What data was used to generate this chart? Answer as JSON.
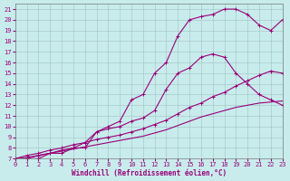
{
  "bg_color": "#c8ecec",
  "grid_color": "#a0c0c0",
  "line_color": "#990077",
  "xlim": [
    0,
    23
  ],
  "ylim": [
    7,
    21.5
  ],
  "xticks": [
    0,
    1,
    2,
    3,
    4,
    5,
    6,
    7,
    8,
    9,
    10,
    11,
    12,
    13,
    14,
    15,
    16,
    17,
    18,
    19,
    20,
    21,
    22,
    23
  ],
  "yticks": [
    7,
    8,
    9,
    10,
    11,
    12,
    13,
    14,
    15,
    16,
    17,
    18,
    19,
    20,
    21
  ],
  "curve_bell_x": [
    0,
    1,
    2,
    3,
    4,
    5,
    6,
    7,
    8,
    9,
    10,
    11,
    12,
    13,
    14,
    15,
    16,
    17,
    18,
    19,
    20,
    21,
    22,
    23
  ],
  "curve_bell_y": [
    7.0,
    7.0,
    7.0,
    7.5,
    7.5,
    8.0,
    8.0,
    9.5,
    10.0,
    10.5,
    12.5,
    13.0,
    15.0,
    16.0,
    18.5,
    20.0,
    20.3,
    20.5,
    21.0,
    21.0,
    20.5,
    19.5,
    19.0,
    20.0
  ],
  "curve_mid_x": [
    0,
    1,
    2,
    3,
    4,
    5,
    6,
    7,
    8,
    9,
    10,
    11,
    12,
    13,
    14,
    15,
    16,
    17,
    18,
    19,
    20,
    21,
    22,
    23
  ],
  "curve_mid_y": [
    7.0,
    7.0,
    7.3,
    7.5,
    7.8,
    8.0,
    8.5,
    9.5,
    9.8,
    10.0,
    10.5,
    10.8,
    11.5,
    13.5,
    15.0,
    15.5,
    16.5,
    16.8,
    16.5,
    15.0,
    14.0,
    13.0,
    12.5,
    12.0
  ],
  "curve_lo1_x": [
    0,
    1,
    2,
    3,
    4,
    5,
    6,
    7,
    8,
    9,
    10,
    11,
    12,
    13,
    14,
    15,
    16,
    17,
    18,
    19,
    20,
    21,
    22,
    23
  ],
  "curve_lo1_y": [
    7.0,
    7.3,
    7.5,
    7.8,
    8.0,
    8.3,
    8.5,
    8.8,
    9.0,
    9.2,
    9.5,
    9.8,
    10.2,
    10.6,
    11.2,
    11.8,
    12.2,
    12.8,
    13.2,
    13.8,
    14.3,
    14.8,
    15.2,
    15.0
  ],
  "curve_lo2_x": [
    0,
    1,
    2,
    3,
    4,
    5,
    6,
    7,
    8,
    9,
    10,
    11,
    12,
    13,
    14,
    15,
    16,
    17,
    18,
    19,
    20,
    21,
    22,
    23
  ],
  "curve_lo2_y": [
    7.0,
    7.1,
    7.3,
    7.5,
    7.7,
    7.9,
    8.1,
    8.3,
    8.5,
    8.7,
    8.9,
    9.1,
    9.4,
    9.7,
    10.1,
    10.5,
    10.9,
    11.2,
    11.5,
    11.8,
    12.0,
    12.2,
    12.3,
    12.4
  ],
  "xlabel": "Windchill (Refroidissement éolien,°C)",
  "xlabel_fontsize": 5.5,
  "tick_fontsize": 5.0
}
